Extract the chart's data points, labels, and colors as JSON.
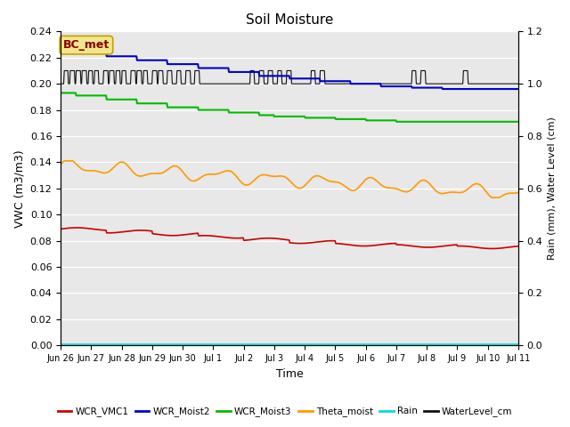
{
  "title": "Soil Moisture",
  "xlabel": "Time",
  "ylabel_left": "VWC (m3/m3)",
  "ylabel_right": "Rain (mm), Water Level (cm)",
  "ylim_left": [
    0.0,
    0.24
  ],
  "ylim_right": [
    0.0,
    1.2
  ],
  "x_tick_labels": [
    "Jun 26",
    "Jun 27",
    "Jun 28",
    "Jun 29",
    "Jun 30",
    "Jul 1",
    "Jul 2",
    "Jul 3",
    "Jul 4",
    "Jul 5",
    "Jul 6",
    "Jul 7",
    "Jul 8",
    "Jul 9",
    "Jul 10",
    "Jul 11"
  ],
  "bg_color": "#e8e8e8",
  "fig_bg": "#ffffff",
  "annotation_text": "BC_met",
  "annotation_color": "#8b0000",
  "annotation_bg": "#f0e68c",
  "annotation_edge": "#c8a000",
  "series": {
    "WCR_VMC1": {
      "color": "#cc0000",
      "lw": 1.2
    },
    "WCR_Moist2": {
      "color": "#0000cc",
      "lw": 1.5
    },
    "WCR_Moist3": {
      "color": "#00bb00",
      "lw": 1.5
    },
    "Theta_moist": {
      "color": "#ff9900",
      "lw": 1.2
    },
    "Rain": {
      "color": "#00dddd",
      "lw": 1.2
    },
    "WaterLevel_cm": {
      "color": "#111111",
      "lw": 0.8
    }
  },
  "yticks_left": [
    0.0,
    0.02,
    0.04,
    0.06,
    0.08,
    0.1,
    0.12,
    0.14,
    0.16,
    0.18,
    0.2,
    0.22,
    0.24
  ],
  "yticks_right": [
    0.0,
    0.2,
    0.4,
    0.6,
    0.8,
    1.0,
    1.2
  ]
}
